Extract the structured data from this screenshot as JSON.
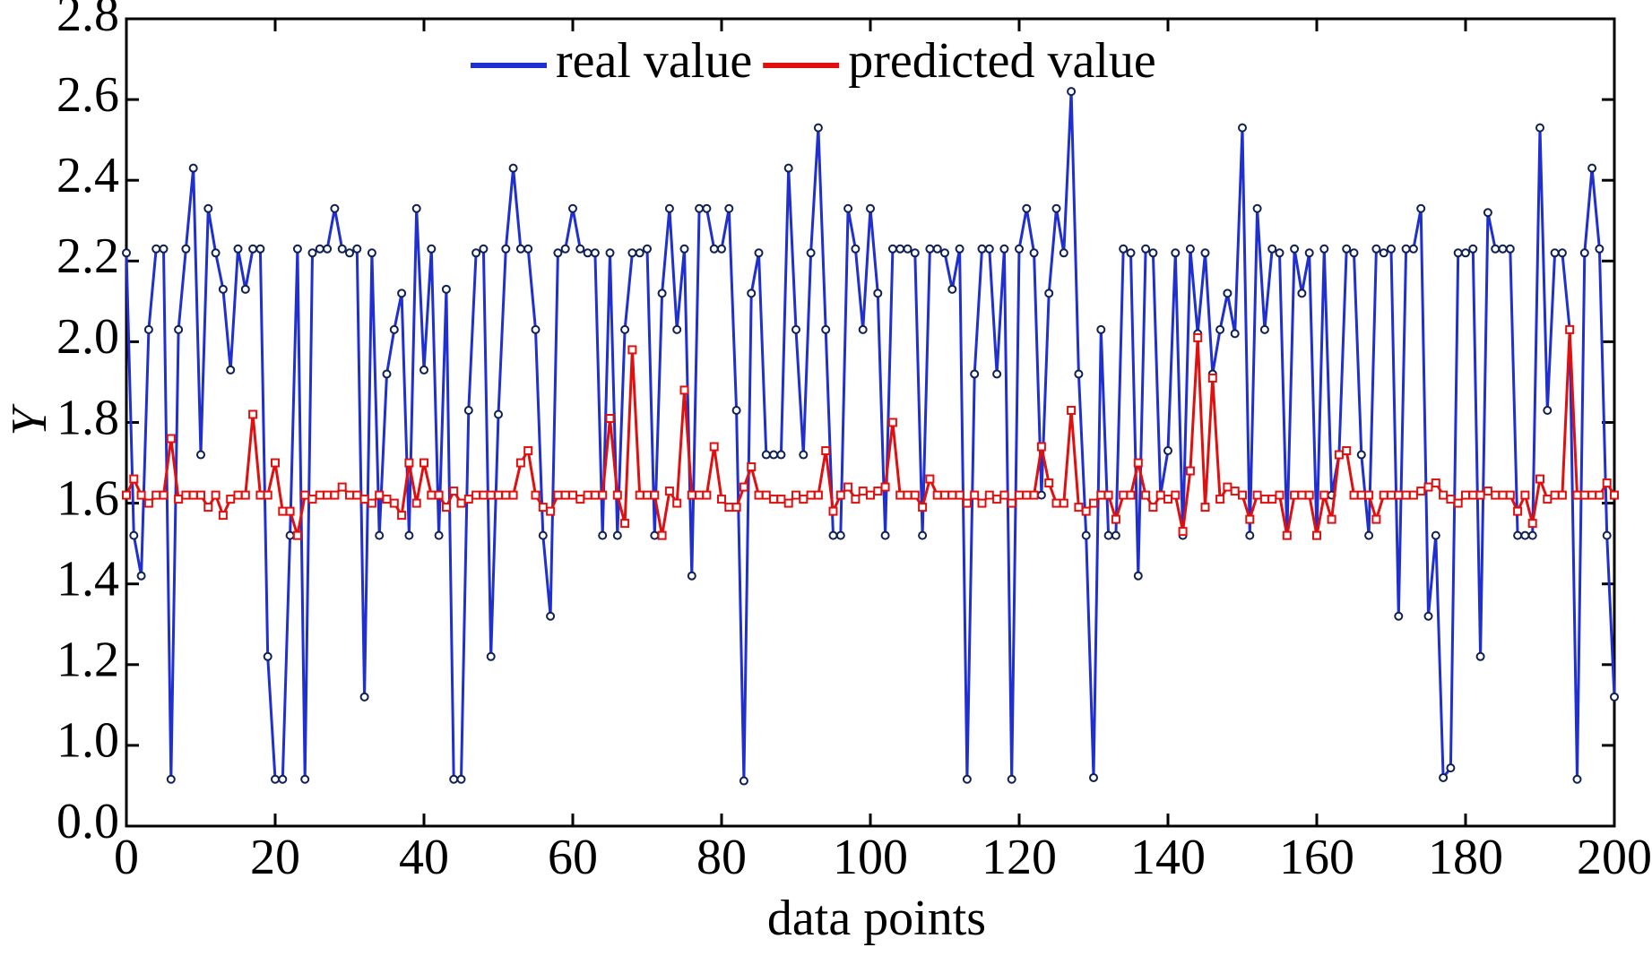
{
  "chart_data": {
    "type": "line",
    "xlabel": "data points",
    "ylabel": "Y",
    "x": [
      0,
      1,
      2,
      3,
      4,
      5,
      6,
      7,
      8,
      9,
      10,
      11,
      12,
      13,
      14,
      15,
      16,
      17,
      18,
      19,
      20,
      21,
      22,
      23,
      24,
      25,
      26,
      27,
      28,
      29,
      30,
      31,
      32,
      33,
      34,
      35,
      36,
      37,
      38,
      39,
      40,
      41,
      42,
      43,
      44,
      45,
      46,
      47,
      48,
      49,
      50,
      51,
      52,
      53,
      54,
      55,
      56,
      57,
      58,
      59,
      60,
      61,
      62,
      63,
      64,
      65,
      66,
      67,
      68,
      69,
      70,
      71,
      72,
      73,
      74,
      75,
      76,
      77,
      78,
      79,
      80,
      81,
      82,
      83,
      84,
      85,
      86,
      87,
      88,
      89,
      90,
      91,
      92,
      93,
      94,
      95,
      96,
      97,
      98,
      99,
      100,
      101,
      102,
      103,
      104,
      105,
      106,
      107,
      108,
      109,
      110,
      111,
      112,
      113,
      114,
      115,
      116,
      117,
      118,
      119,
      120,
      121,
      122,
      123,
      124,
      125,
      126,
      127,
      128,
      129,
      130,
      131,
      132,
      133,
      134,
      135,
      136,
      137,
      138,
      139,
      140,
      141,
      142,
      143,
      144,
      145,
      146,
      147,
      148,
      149,
      150,
      151,
      152,
      153,
      154,
      155,
      156,
      157,
      158,
      159,
      160,
      161,
      162,
      163,
      164,
      165,
      166,
      167,
      168,
      169,
      170,
      171,
      172,
      173,
      174,
      175,
      176,
      177,
      178,
      179,
      180,
      181,
      182,
      183,
      184,
      185,
      186,
      187,
      188,
      189,
      190,
      191,
      192,
      193,
      194,
      195,
      196,
      197,
      198,
      199,
      200
    ],
    "series": [
      {
        "name": "real value",
        "color": "#1f2fd0",
        "marker": "circle",
        "values": [
          2.22,
          1.52,
          1.42,
          2.03,
          2.23,
          2.23,
          0.58,
          2.03,
          2.23,
          2.43,
          1.72,
          2.33,
          2.22,
          2.13,
          1.93,
          2.23,
          2.13,
          2.23,
          2.23,
          1.22,
          0.58,
          0.58,
          1.52,
          2.23,
          0.58,
          2.22,
          2.23,
          2.23,
          2.33,
          2.23,
          2.22,
          2.23,
          1.12,
          2.22,
          1.52,
          1.92,
          2.03,
          2.12,
          1.52,
          2.33,
          1.93,
          2.23,
          1.52,
          2.13,
          0.58,
          0.58,
          1.83,
          2.22,
          2.23,
          1.22,
          1.82,
          2.23,
          2.43,
          2.23,
          2.23,
          2.03,
          1.52,
          1.32,
          2.22,
          2.23,
          2.33,
          2.23,
          2.22,
          2.22,
          1.52,
          2.22,
          1.52,
          2.03,
          2.22,
          2.22,
          2.23,
          1.52,
          2.12,
          2.33,
          2.03,
          2.23,
          1.42,
          2.33,
          2.33,
          2.23,
          2.23,
          2.33,
          1.83,
          0.56,
          2.12,
          2.22,
          1.72,
          1.72,
          1.72,
          2.43,
          2.03,
          1.72,
          2.22,
          2.53,
          2.03,
          1.52,
          1.52,
          2.33,
          2.23,
          2.03,
          2.33,
          2.12,
          1.52,
          2.23,
          2.23,
          2.23,
          2.22,
          1.52,
          2.23,
          2.23,
          2.22,
          2.13,
          2.23,
          0.58,
          1.92,
          2.23,
          2.23,
          1.92,
          2.23,
          0.58,
          2.23,
          2.33,
          2.22,
          1.62,
          2.12,
          2.33,
          2.22,
          2.62,
          1.92,
          1.52,
          0.6,
          2.03,
          1.52,
          1.52,
          2.23,
          2.22,
          1.42,
          2.23,
          2.22,
          1.62,
          1.73,
          2.22,
          1.52,
          2.23,
          2.02,
          2.22,
          1.92,
          2.03,
          2.12,
          2.02,
          2.53,
          1.52,
          2.33,
          2.03,
          2.23,
          2.22,
          1.52,
          2.23,
          2.12,
          2.22,
          1.52,
          2.23,
          1.62,
          1.72,
          2.23,
          2.22,
          1.72,
          1.52,
          2.23,
          2.22,
          2.23,
          1.32,
          2.23,
          2.23,
          2.33,
          1.32,
          1.52,
          0.6,
          0.72,
          2.22,
          2.22,
          2.23,
          1.22,
          2.32,
          2.23,
          2.23,
          2.23,
          1.52,
          1.52,
          1.52,
          2.53,
          1.83,
          2.22,
          2.22,
          2.03,
          0.58,
          2.22,
          2.43,
          2.23,
          1.52,
          1.12
        ]
      },
      {
        "name": "predicted value",
        "color": "#e01010",
        "marker": "square",
        "values": [
          1.62,
          1.66,
          1.62,
          1.6,
          1.62,
          1.62,
          1.76,
          1.61,
          1.62,
          1.62,
          1.62,
          1.59,
          1.62,
          1.57,
          1.61,
          1.62,
          1.62,
          1.82,
          1.62,
          1.62,
          1.7,
          1.58,
          1.58,
          1.52,
          1.62,
          1.61,
          1.62,
          1.62,
          1.62,
          1.64,
          1.62,
          1.62,
          1.61,
          1.6,
          1.62,
          1.61,
          1.6,
          1.57,
          1.7,
          1.6,
          1.7,
          1.62,
          1.62,
          1.59,
          1.63,
          1.6,
          1.61,
          1.62,
          1.62,
          1.62,
          1.62,
          1.62,
          1.62,
          1.7,
          1.73,
          1.62,
          1.59,
          1.58,
          1.62,
          1.62,
          1.62,
          1.61,
          1.62,
          1.62,
          1.62,
          1.81,
          1.62,
          1.55,
          1.98,
          1.62,
          1.62,
          1.62,
          1.52,
          1.63,
          1.6,
          1.88,
          1.62,
          1.62,
          1.62,
          1.74,
          1.61,
          1.59,
          1.59,
          1.64,
          1.69,
          1.62,
          1.62,
          1.61,
          1.61,
          1.6,
          1.62,
          1.61,
          1.62,
          1.62,
          1.73,
          1.58,
          1.62,
          1.64,
          1.61,
          1.63,
          1.62,
          1.63,
          1.64,
          1.8,
          1.62,
          1.62,
          1.62,
          1.59,
          1.66,
          1.62,
          1.62,
          1.62,
          1.62,
          1.6,
          1.62,
          1.6,
          1.62,
          1.61,
          1.62,
          1.6,
          1.62,
          1.62,
          1.62,
          1.74,
          1.65,
          1.6,
          1.6,
          1.83,
          1.59,
          1.58,
          1.6,
          1.62,
          1.62,
          1.56,
          1.62,
          1.62,
          1.7,
          1.62,
          1.59,
          1.62,
          1.61,
          1.62,
          1.53,
          1.68,
          2.01,
          1.59,
          1.91,
          1.61,
          1.64,
          1.63,
          1.62,
          1.56,
          1.62,
          1.61,
          1.61,
          1.62,
          1.52,
          1.62,
          1.62,
          1.62,
          1.52,
          1.62,
          1.56,
          1.72,
          1.73,
          1.62,
          1.62,
          1.62,
          1.56,
          1.62,
          1.62,
          1.62,
          1.62,
          1.62,
          1.63,
          1.64,
          1.65,
          1.62,
          1.61,
          1.6,
          1.62,
          1.62,
          1.62,
          1.63,
          1.62,
          1.62,
          1.62,
          1.58,
          1.62,
          1.55,
          1.66,
          1.61,
          1.62,
          1.62,
          2.03,
          1.62,
          1.62,
          1.62,
          1.62,
          1.65,
          1.62
        ]
      }
    ],
    "xlim": [
      0,
      200
    ],
    "xticks": [
      0,
      20,
      40,
      60,
      80,
      100,
      120,
      140,
      160,
      180,
      200
    ],
    "ylim": [
      0,
      2.8
    ],
    "yticks": [
      {
        "value": 0,
        "label": "0.0"
      },
      {
        "value": 1.0,
        "label": "1.0"
      },
      1.2,
      1.4,
      1.6,
      1.8,
      {
        "value": 2.0,
        "label": "2.0"
      },
      2.2,
      2.4,
      2.6,
      2.8
    ],
    "legend": "top"
  }
}
